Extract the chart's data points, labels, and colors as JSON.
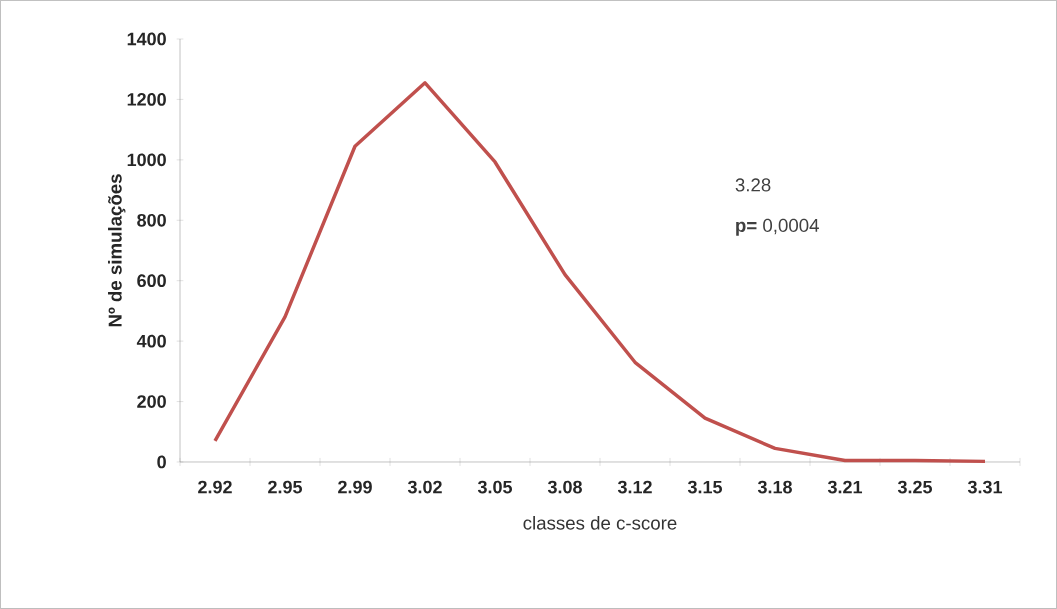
{
  "chart_data": {
    "type": "line",
    "categories": [
      "2.92",
      "2.95",
      "2.99",
      "3.02",
      "3.05",
      "3.08",
      "3.12",
      "3.15",
      "3.18",
      "3.21",
      "3.25",
      "3.31"
    ],
    "values": [
      70,
      480,
      1045,
      1255,
      993,
      620,
      330,
      145,
      45,
      5,
      5,
      2
    ],
    "color": "#c0504d",
    "xlabel": "classes de c-score",
    "ylabel": "Nº de simulações",
    "ylim": [
      0,
      1400
    ],
    "yticks": [
      0,
      200,
      400,
      600,
      800,
      1000,
      1200,
      1400
    ],
    "annotations": [
      "3.28",
      "**p=** 0,0004"
    ],
    "marker": "none",
    "line_style": "solid"
  }
}
